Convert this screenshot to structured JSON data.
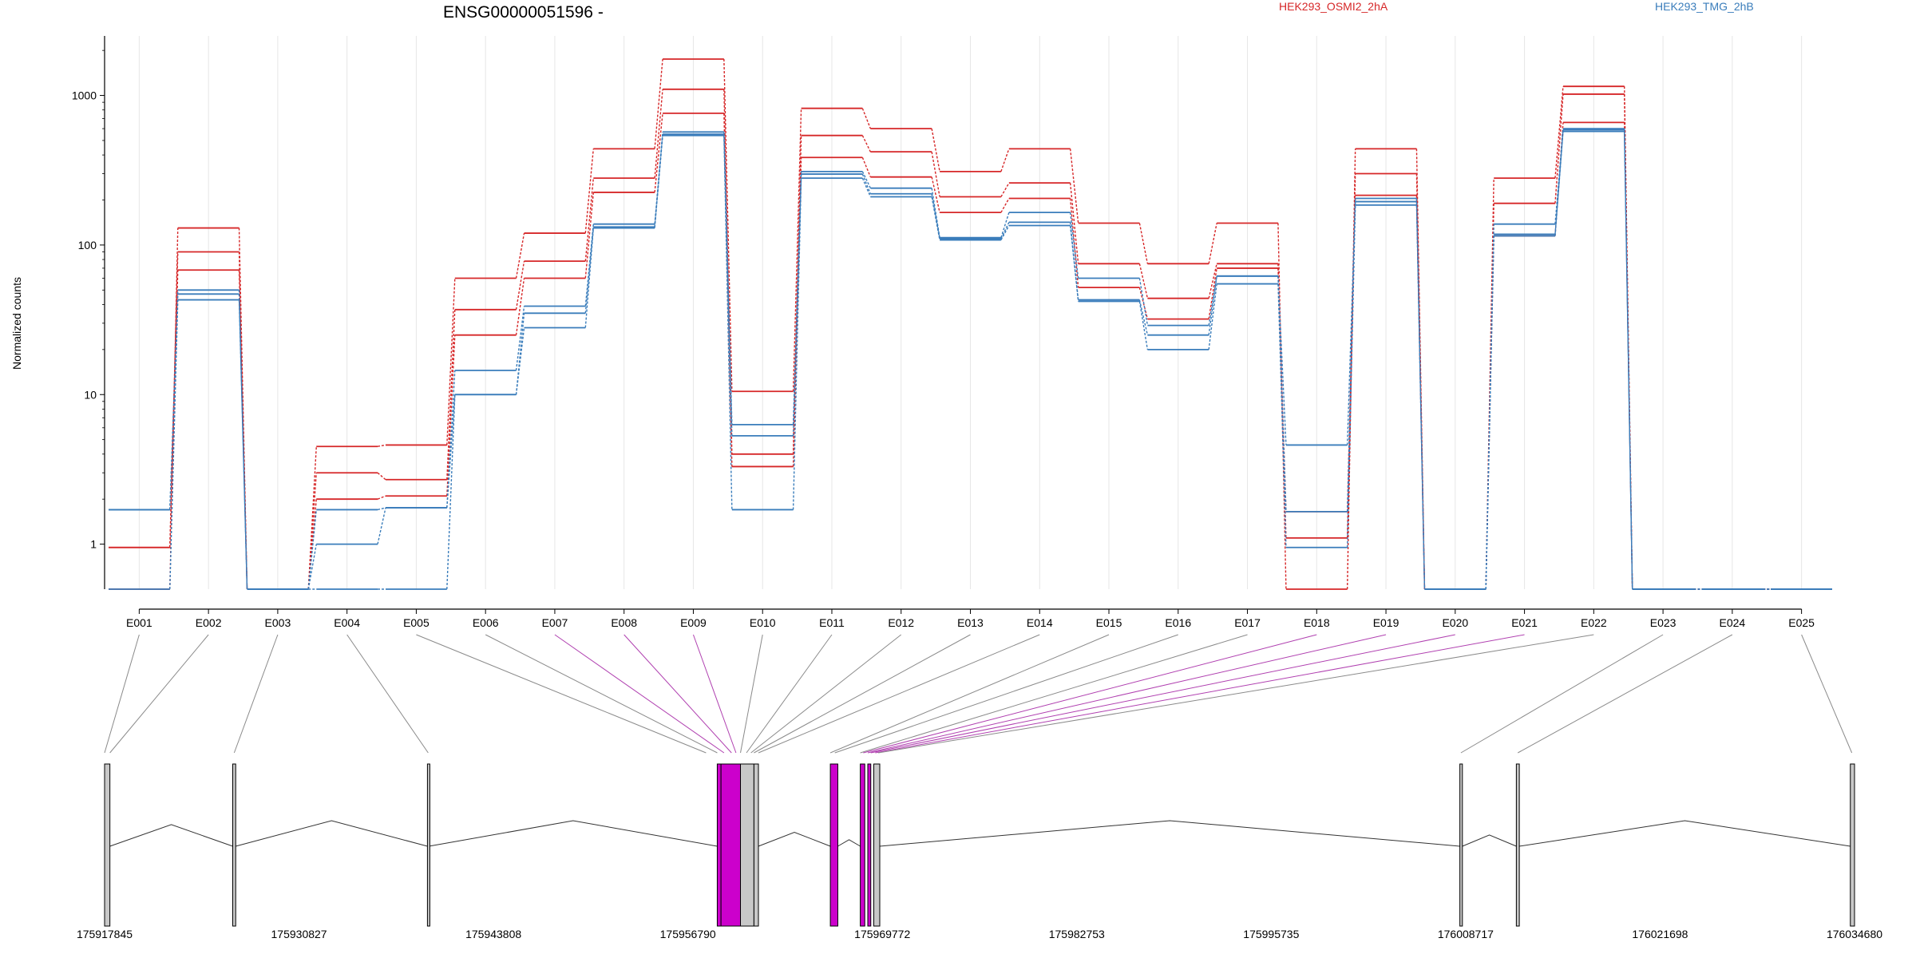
{
  "chart_data": {
    "type": "line",
    "title": "ENSG00000051596 -",
    "ylabel": "Normalized counts",
    "yscale": "log",
    "ylim": [
      0.5,
      2500
    ],
    "y_ticks": [
      1,
      10,
      100,
      1000
    ],
    "y_tick_labels": [
      "1",
      "10",
      "100",
      "1000"
    ],
    "categories": [
      "E001",
      "E002",
      "E003",
      "E004",
      "E005",
      "E006",
      "E007",
      "E008",
      "E009",
      "E010",
      "E011",
      "E012",
      "E013",
      "E014",
      "E015",
      "E016",
      "E017",
      "E018",
      "E019",
      "E020",
      "E021",
      "E022",
      "E023",
      "E024",
      "E025"
    ],
    "colors": {
      "HEK293_OSMI2_2hA": "#d62728",
      "HEK293_TMG_2hB": "#3a7dbb"
    },
    "legend": [
      {
        "name": "HEK293_OSMI2_2hA",
        "color": "#d62728"
      },
      {
        "name": "HEK293_TMG_2hB",
        "color": "#3a7dbb"
      }
    ],
    "series": [
      {
        "group": "HEK293_OSMI2_2hA",
        "values": [
          0.5,
          130,
          0.5,
          4.5,
          4.6,
          60,
          120,
          440,
          1750,
          10.5,
          820,
          600,
          310,
          440,
          140,
          75,
          140,
          0.5,
          440,
          0.5,
          280,
          1150,
          0.5,
          0.5,
          0.5
        ]
      },
      {
        "group": "HEK293_OSMI2_2hA",
        "values": [
          0.95,
          90,
          0.5,
          3.0,
          2.7,
          37,
          78,
          280,
          1100,
          4.0,
          540,
          420,
          210,
          260,
          75,
          44,
          75,
          1.1,
          300,
          0.5,
          190,
          1020,
          0.5,
          0.5,
          0.5
        ]
      },
      {
        "group": "HEK293_OSMI2_2hA",
        "values": [
          0.95,
          68,
          0.5,
          2.0,
          2.1,
          25,
          60,
          225,
          760,
          3.3,
          385,
          285,
          165,
          205,
          52,
          32,
          70,
          1.65,
          215,
          0.5,
          115,
          660,
          0.5,
          0.5,
          0.5
        ]
      },
      {
        "group": "HEK293_TMG_2hB",
        "values": [
          1.7,
          50,
          0.5,
          1.7,
          1.75,
          14.5,
          39,
          138,
          570,
          6.3,
          310,
          240,
          112,
          165,
          60,
          29,
          62,
          4.6,
          205,
          0.5,
          138,
          600,
          0.5,
          0.5,
          0.5
        ]
      },
      {
        "group": "HEK293_TMG_2hB",
        "values": [
          1.7,
          47,
          0.5,
          0.5,
          0.5,
          10,
          35,
          132,
          550,
          5.3,
          298,
          220,
          110,
          142,
          43,
          25,
          62,
          1.65,
          195,
          0.5,
          118,
          590,
          0.5,
          0.5,
          0.5
        ]
      },
      {
        "group": "HEK293_TMG_2hB",
        "values": [
          0.5,
          43,
          0.5,
          1.0,
          1.75,
          10,
          28,
          130,
          540,
          1.7,
          280,
          210,
          108,
          135,
          42,
          20,
          55,
          0.95,
          185,
          0.5,
          115,
          575,
          0.5,
          0.5,
          0.5
        ]
      }
    ],
    "highlighted_exons": [
      "E007",
      "E008",
      "E009",
      "E018",
      "E019",
      "E020",
      "E021"
    ],
    "gene_model": {
      "coordinate_labels": [
        "175917845",
        "175930827",
        "175943808",
        "175956790",
        "175969772",
        "175982753",
        "175995735",
        "176008717",
        "176021698",
        "176034680"
      ],
      "range": [
        175917845,
        176034680
      ],
      "exons": [
        {
          "start": 175917845,
          "end": 175918200,
          "color": "#c8c8c8"
        },
        {
          "start": 175926400,
          "end": 175926600,
          "color": "#c8c8c8"
        },
        {
          "start": 175939400,
          "end": 175939500,
          "color": "#c8c8c8"
        },
        {
          "start": 175958750,
          "end": 175959000,
          "color": "#cc00cc"
        },
        {
          "start": 175959000,
          "end": 175960300,
          "color": "#cc00cc"
        },
        {
          "start": 175960300,
          "end": 175961200,
          "color": "#c8c8c8"
        },
        {
          "start": 175961200,
          "end": 175961500,
          "color": "#c8c8c8"
        },
        {
          "start": 175966300,
          "end": 175966800,
          "color": "#cc00cc"
        },
        {
          "start": 175968300,
          "end": 175968600,
          "color": "#cc00cc"
        },
        {
          "start": 175968800,
          "end": 175969000,
          "color": "#cc00cc"
        },
        {
          "start": 175969200,
          "end": 175969600,
          "color": "#c8c8c8"
        },
        {
          "start": 176008330,
          "end": 176008500,
          "color": "#c8c8c8"
        },
        {
          "start": 176012100,
          "end": 176012300,
          "color": "#c8c8c8"
        },
        {
          "start": 176034400,
          "end": 176034680,
          "color": "#c8c8c8"
        }
      ],
      "exon_bin_positions": [
        175917845,
        175918200,
        175926500,
        175939450,
        175958000,
        175958750,
        175959200,
        175959700,
        175960000,
        175960300,
        175960700,
        175961000,
        175961200,
        175961500,
        175966300,
        175966600,
        175968300,
        175968500,
        175968800,
        175969000,
        175969300,
        175969500,
        176008400,
        176012200,
        176034500
      ]
    }
  }
}
